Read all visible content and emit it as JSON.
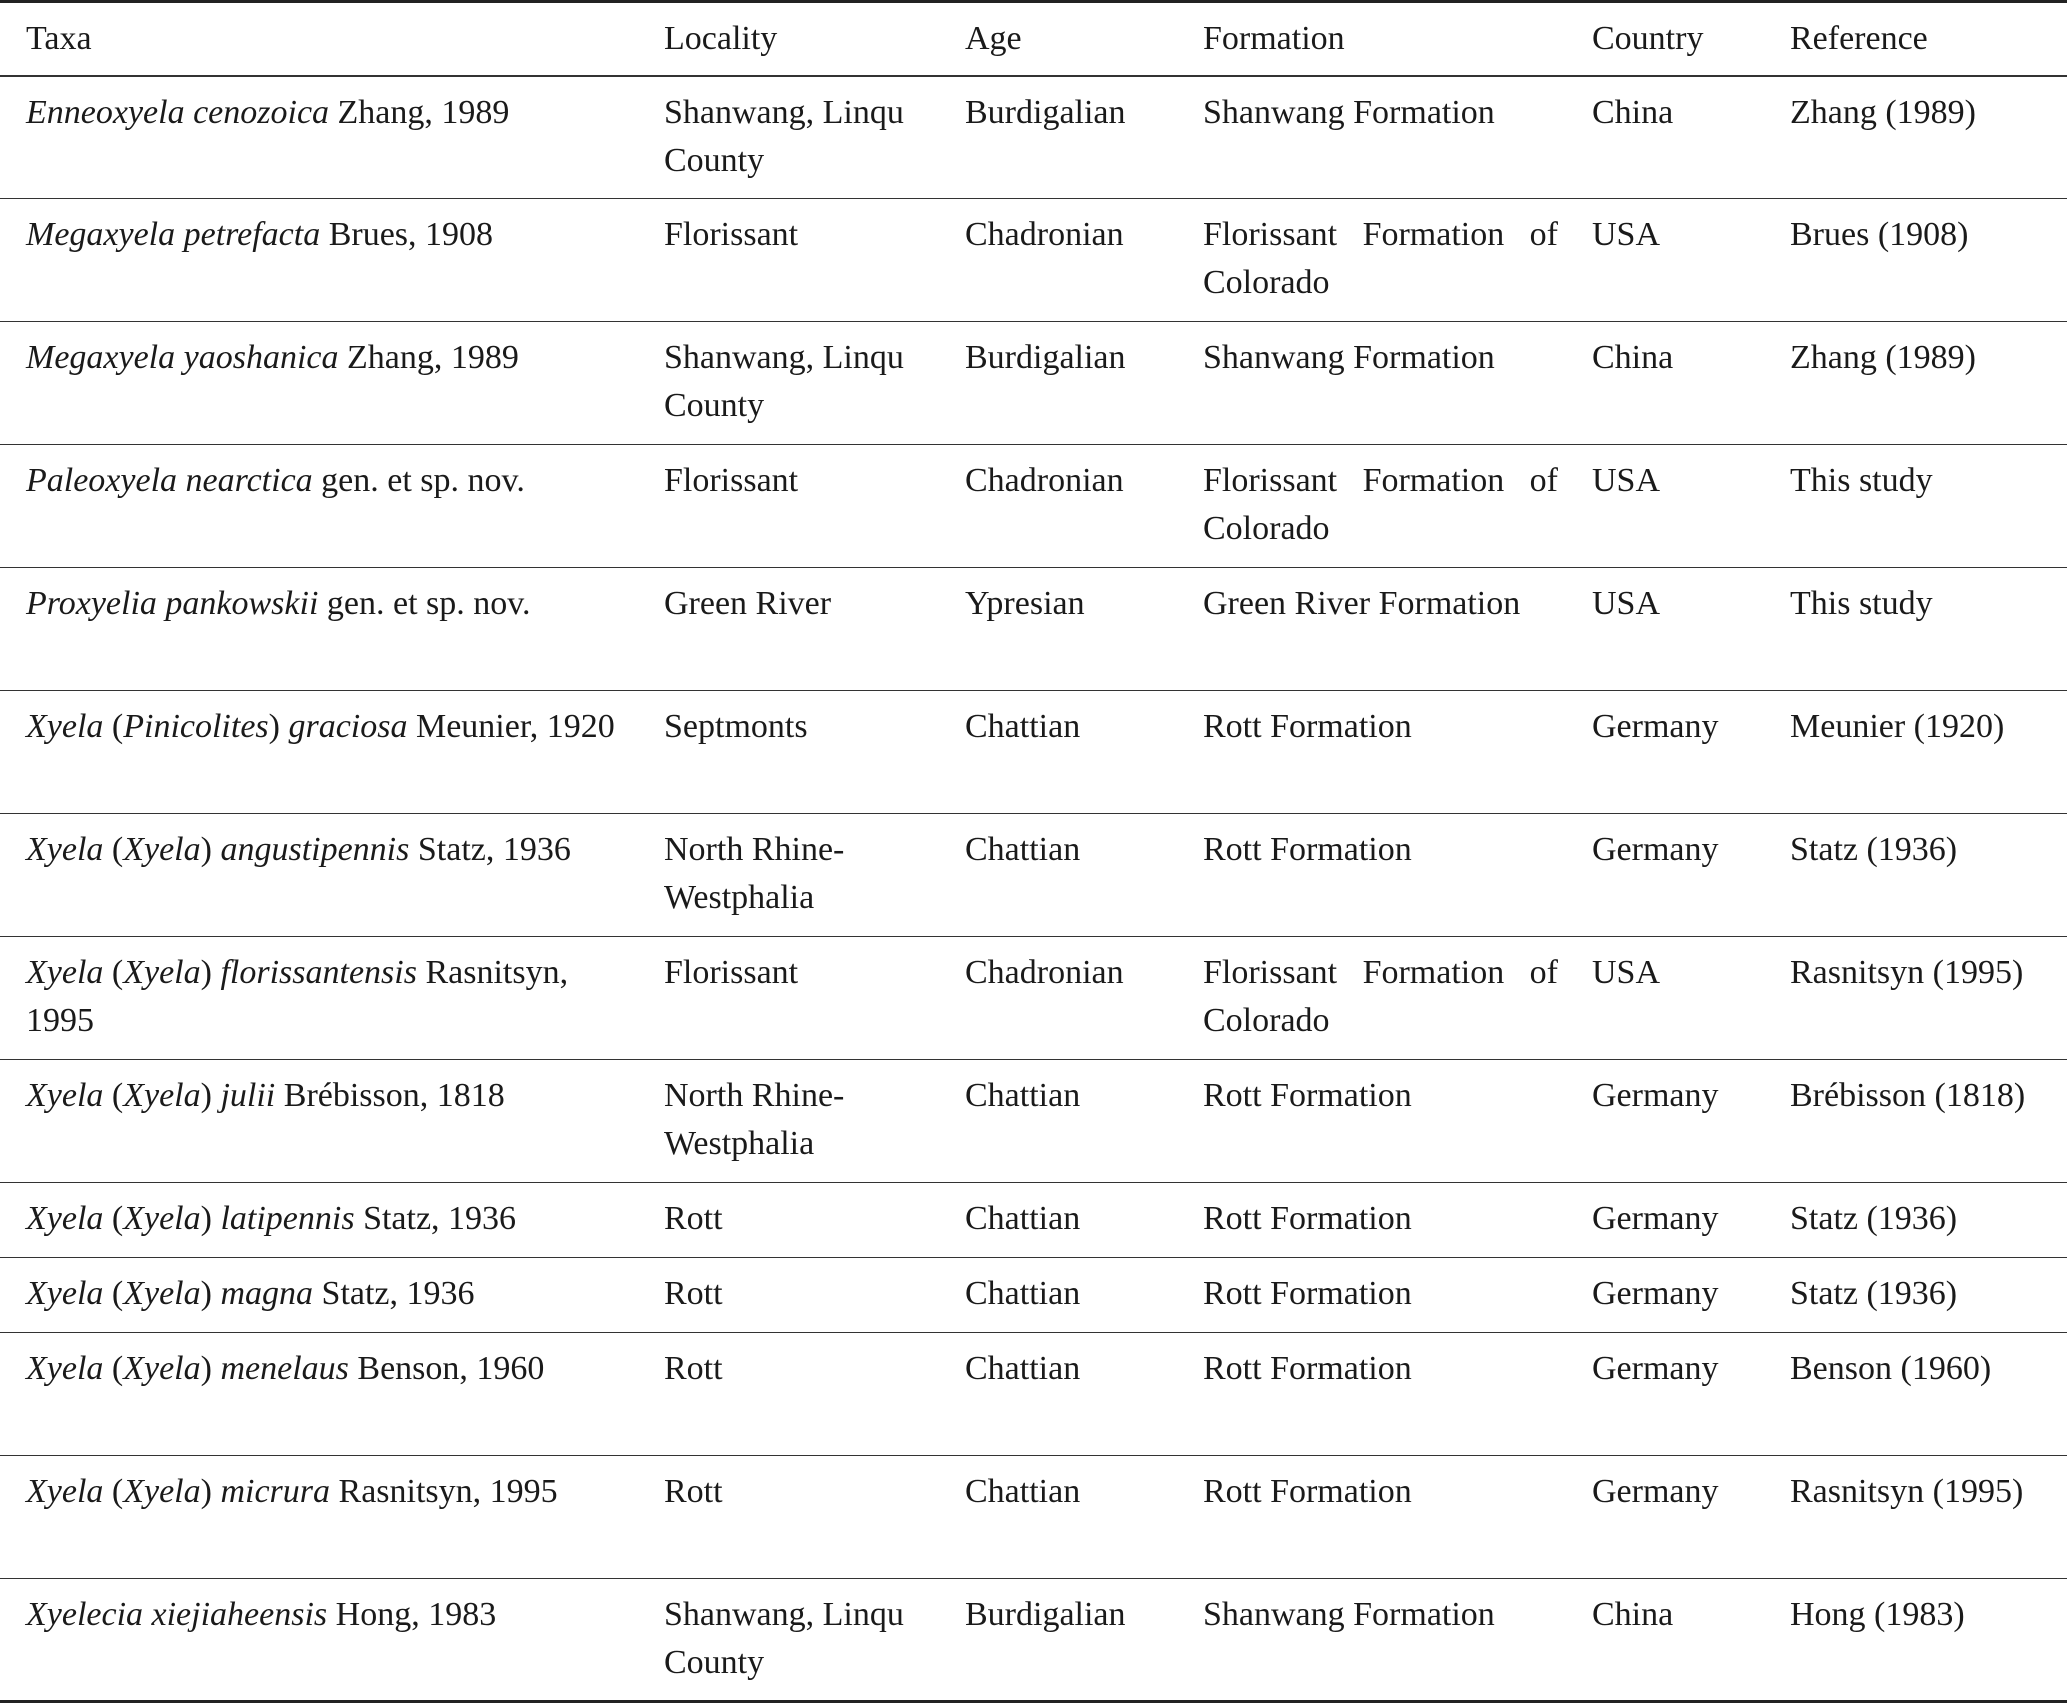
{
  "table": {
    "header": [
      "Taxa",
      "Locality",
      "Age",
      "Formation",
      "Country",
      "Reference"
    ],
    "rows": [
      {
        "taxa": [
          {
            "text": "Enneoxyela cenozoica",
            "italic": true
          },
          {
            "text": " Zhang, 1989",
            "italic": false
          }
        ],
        "locality": "Shanwang, Linqu County",
        "age": "Burdigalian",
        "formation": "Shanwang Formation",
        "country": "China",
        "reference": "Zhang (1989)"
      },
      {
        "taxa": [
          {
            "text": "Megaxyela petrefacta",
            "italic": true
          },
          {
            "text": " Brues, 1908",
            "italic": false
          }
        ],
        "locality": "Florissant",
        "age": "Chadronian",
        "formation": "Florissant Formation of Colorado",
        "country": "USA",
        "reference": "Brues (1908)"
      },
      {
        "taxa": [
          {
            "text": "Megaxyela yaoshanica",
            "italic": true
          },
          {
            "text": " Zhang, 1989",
            "italic": false
          }
        ],
        "locality": "Shanwang, Linqu County",
        "age": "Burdigalian",
        "formation": "Shanwang Formation",
        "country": "China",
        "reference": "Zhang (1989)"
      },
      {
        "taxa": [
          {
            "text": "Paleoxyela nearctica",
            "italic": true
          },
          {
            "text": " gen. et sp. nov.",
            "italic": false
          }
        ],
        "locality": "Florissant",
        "age": "Chadronian",
        "formation": "Florissant Formation of Colorado",
        "country": "USA",
        "reference": "This study"
      },
      {
        "taxa": [
          {
            "text": "Proxyelia pankowskii",
            "italic": true
          },
          {
            "text": " gen. et sp. nov.",
            "italic": false
          }
        ],
        "locality": "Green River",
        "age": "Ypresian",
        "formation": "Green River Formation",
        "country": "USA",
        "reference": "This study"
      },
      {
        "taxa": [
          {
            "text": "Xyela",
            "italic": true
          },
          {
            "text": " (",
            "italic": false
          },
          {
            "text": "Pinicolites",
            "italic": true
          },
          {
            "text": ") ",
            "italic": false
          },
          {
            "text": "graciosa",
            "italic": true
          },
          {
            "text": " Meunier, 1920",
            "italic": false
          }
        ],
        "locality": "Septmonts",
        "age": "Chattian",
        "formation": "Rott Formation",
        "country": "Germany",
        "reference": "Meunier (1920)"
      },
      {
        "taxa": [
          {
            "text": "Xyela",
            "italic": true
          },
          {
            "text": " (",
            "italic": false
          },
          {
            "text": "Xyela",
            "italic": true
          },
          {
            "text": ") ",
            "italic": false
          },
          {
            "text": "angustipennis",
            "italic": true
          },
          {
            "text": " Statz, 1936",
            "italic": false
          }
        ],
        "locality": "North Rhine-Westphalia",
        "age": "Chattian",
        "formation": "Rott Formation",
        "country": "Germany",
        "reference": "Statz (1936)"
      },
      {
        "taxa": [
          {
            "text": "Xyela",
            "italic": true
          },
          {
            "text": " (",
            "italic": false
          },
          {
            "text": "Xyela",
            "italic": true
          },
          {
            "text": ") ",
            "italic": false
          },
          {
            "text": "florissantensis",
            "italic": true
          },
          {
            "text": " Rasnitsyn, 1995",
            "italic": false
          }
        ],
        "locality": "Florissant",
        "age": "Chadronian",
        "formation": "Florissant Formation of Colorado",
        "country": "USA",
        "reference": "Rasnitsyn (1995)"
      },
      {
        "taxa": [
          {
            "text": "Xyela",
            "italic": true
          },
          {
            "text": " (",
            "italic": false
          },
          {
            "text": "Xyela",
            "italic": true
          },
          {
            "text": ") ",
            "italic": false
          },
          {
            "text": "julii",
            "italic": true
          },
          {
            "text": " Brébisson, 1818",
            "italic": false
          }
        ],
        "locality": "North Rhine-Westphalia",
        "age": "Chattian",
        "formation": "Rott Formation",
        "country": "Germany",
        "reference": "Brébisson (1818)"
      },
      {
        "taxa": [
          {
            "text": "Xyela",
            "italic": true
          },
          {
            "text": " (",
            "italic": false
          },
          {
            "text": "Xyela",
            "italic": true
          },
          {
            "text": ") ",
            "italic": false
          },
          {
            "text": "latipennis",
            "italic": true
          },
          {
            "text": " Statz, 1936",
            "italic": false
          }
        ],
        "locality": "Rott",
        "age": "Chattian",
        "formation": "Rott Formation",
        "country": "Germany",
        "reference": "Statz (1936)"
      },
      {
        "taxa": [
          {
            "text": "Xyela",
            "italic": true
          },
          {
            "text": " (",
            "italic": false
          },
          {
            "text": "Xyela",
            "italic": true
          },
          {
            "text": ") ",
            "italic": false
          },
          {
            "text": "magna",
            "italic": true
          },
          {
            "text": " Statz, 1936",
            "italic": false
          }
        ],
        "locality": "Rott",
        "age": "Chattian",
        "formation": "Rott Formation",
        "country": "Germany",
        "reference": "Statz (1936)"
      },
      {
        "taxa": [
          {
            "text": "Xyela",
            "italic": true
          },
          {
            "text": " (",
            "italic": false
          },
          {
            "text": "Xyela",
            "italic": true
          },
          {
            "text": ") ",
            "italic": false
          },
          {
            "text": "menelaus",
            "italic": true
          },
          {
            "text": " Benson, 1960",
            "italic": false
          }
        ],
        "locality": "Rott",
        "age": "Chattian",
        "formation": "Rott Formation",
        "country": "Germany",
        "reference": "Benson (1960)"
      },
      {
        "taxa": [
          {
            "text": "Xyela",
            "italic": true
          },
          {
            "text": " (",
            "italic": false
          },
          {
            "text": "Xyela",
            "italic": true
          },
          {
            "text": ") ",
            "italic": false
          },
          {
            "text": "micrura",
            "italic": true
          },
          {
            "text": " Rasnitsyn, 1995",
            "italic": false
          }
        ],
        "locality": "Rott",
        "age": "Chattian",
        "formation": "Rott Formation",
        "country": "Germany",
        "reference": "Rasnitsyn (1995)"
      },
      {
        "taxa": [
          {
            "text": "Xyelecia xiejiaheensis",
            "italic": true
          },
          {
            "text": " Hong, 1983",
            "italic": false
          }
        ],
        "locality": "Shanwang, Linqu County",
        "age": "Burdigalian",
        "formation": "Shanwang Formation",
        "country": "China",
        "reference": "Hong (1983)"
      }
    ]
  }
}
